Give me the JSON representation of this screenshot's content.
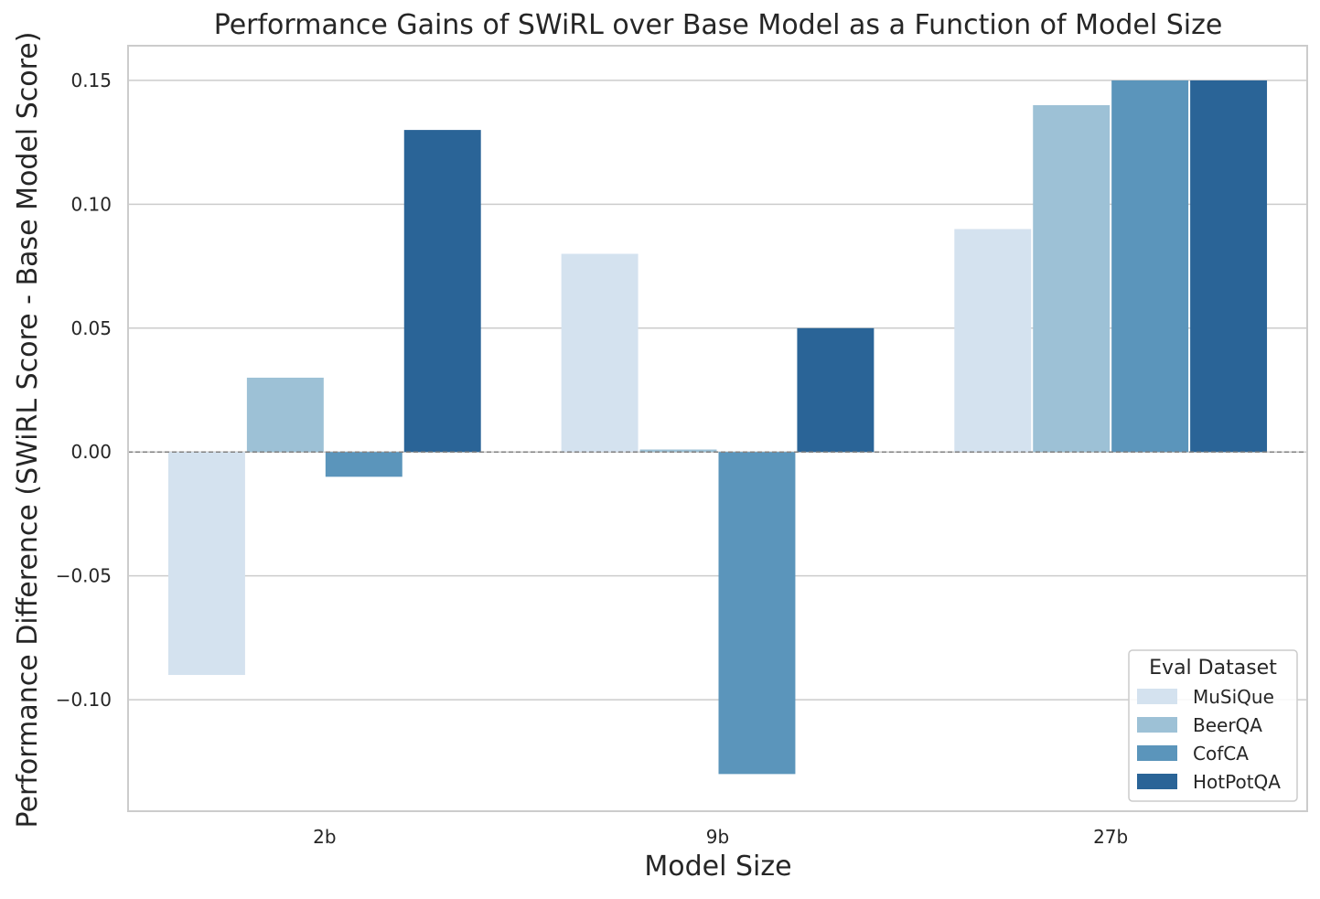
{
  "chart_data": {
    "type": "bar",
    "title": "Performance Gains of SWiRL over Base Model as a Function of Model Size",
    "xlabel": "Model Size",
    "ylabel": "Performance Difference (SWiRL Score - Base Model Score)",
    "categories": [
      "2b",
      "9b",
      "27b"
    ],
    "series": [
      {
        "name": "MuSiQue",
        "color": "#d4e2ef",
        "values": [
          -0.09,
          0.08,
          0.09
        ]
      },
      {
        "name": "BeerQA",
        "color": "#9dc1d6",
        "values": [
          0.03,
          0.001,
          0.14
        ]
      },
      {
        "name": "CofCA",
        "color": "#5b95bb",
        "values": [
          -0.01,
          -0.13,
          0.15
        ]
      },
      {
        "name": "HotPotQA",
        "color": "#2a6497",
        "values": [
          0.13,
          0.05,
          0.15
        ]
      }
    ],
    "ylim": [
      -0.145,
      0.164
    ],
    "yticks": [
      -0.1,
      -0.05,
      0.0,
      0.05,
      0.1,
      0.15
    ],
    "ytick_labels": [
      "−0.10",
      "−0.05",
      "0.00",
      "0.05",
      "0.10",
      "0.15"
    ],
    "grid": true,
    "zero_line": "dashed",
    "legend": {
      "title": "Eval Dataset",
      "placement": "lower-right"
    }
  }
}
